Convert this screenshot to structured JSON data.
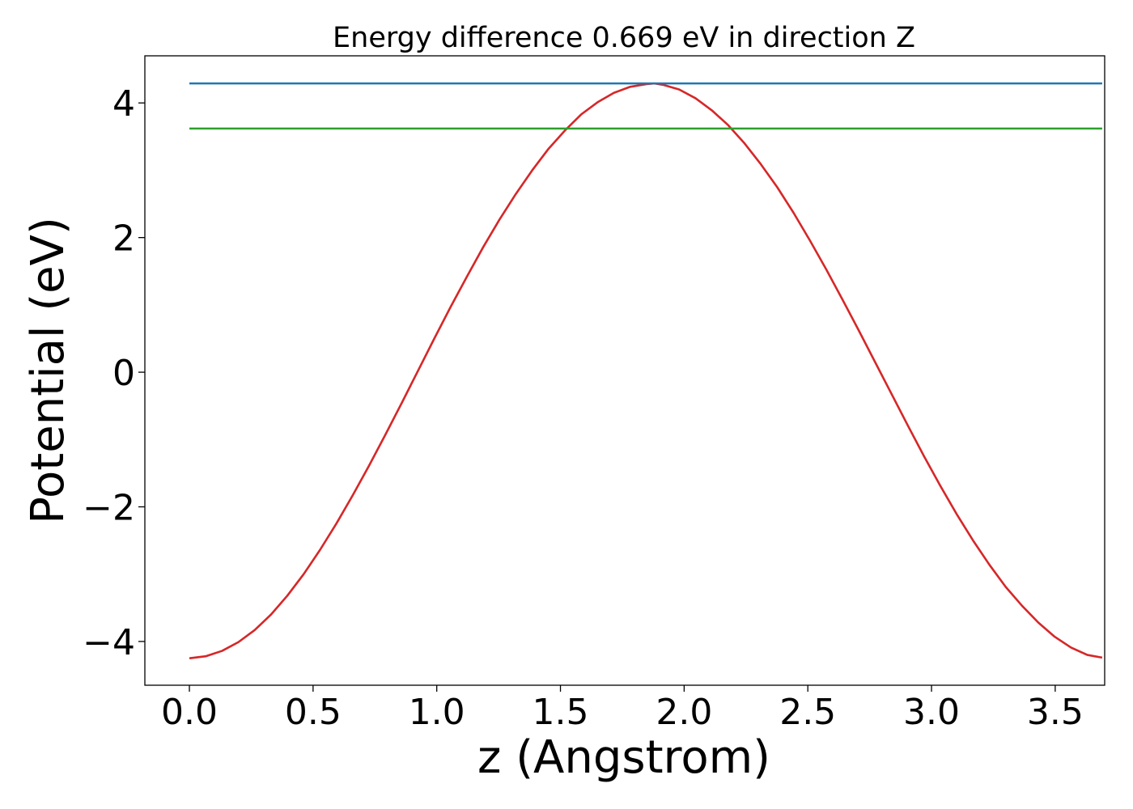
{
  "chart_data": {
    "type": "line",
    "title": "Energy difference 0.669 eV in direction Z",
    "xlabel": "z (Angstrom)",
    "ylabel": "Potential (eV)",
    "xlim": [
      -0.18,
      3.7
    ],
    "ylim": [
      -4.65,
      4.7
    ],
    "xticks": [
      0.0,
      0.5,
      1.0,
      1.5,
      2.0,
      2.5,
      3.0,
      3.5
    ],
    "xtick_labels": [
      "0.0",
      "0.5",
      "1.0",
      "1.5",
      "2.0",
      "2.5",
      "3.0",
      "3.5"
    ],
    "yticks": [
      -4,
      -2,
      0,
      2,
      4
    ],
    "ytick_labels": [
      "−4",
      "−2",
      "0",
      "2",
      "4"
    ],
    "grid": false,
    "legend": null,
    "series": [
      {
        "color": "#d62728",
        "x": [
          0.0,
          0.066,
          0.132,
          0.198,
          0.264,
          0.33,
          0.396,
          0.462,
          0.528,
          0.594,
          0.66,
          0.726,
          0.792,
          0.858,
          0.924,
          0.99,
          1.056,
          1.122,
          1.188,
          1.254,
          1.32,
          1.386,
          1.452,
          1.518,
          1.584,
          1.65,
          1.716,
          1.782,
          1.848,
          1.88,
          1.914,
          1.98,
          2.046,
          2.112,
          2.178,
          2.244,
          2.31,
          2.376,
          2.442,
          2.508,
          2.574,
          2.64,
          2.706,
          2.772,
          2.838,
          2.904,
          2.97,
          3.036,
          3.102,
          3.168,
          3.234,
          3.3,
          3.366,
          3.432,
          3.498,
          3.564,
          3.63,
          3.69
        ],
        "y": [
          -4.25,
          -4.22,
          -4.14,
          -4.01,
          -3.83,
          -3.6,
          -3.32,
          -3.0,
          -2.64,
          -2.25,
          -1.83,
          -1.39,
          -0.93,
          -0.46,
          0.02,
          0.5,
          0.97,
          1.42,
          1.86,
          2.27,
          2.65,
          3.0,
          3.32,
          3.59,
          3.83,
          4.01,
          4.15,
          4.24,
          4.28,
          4.29,
          4.27,
          4.2,
          4.07,
          3.89,
          3.67,
          3.4,
          3.09,
          2.75,
          2.37,
          1.96,
          1.53,
          1.08,
          0.62,
          0.15,
          -0.32,
          -0.79,
          -1.25,
          -1.69,
          -2.11,
          -2.5,
          -2.86,
          -3.19,
          -3.47,
          -3.72,
          -3.93,
          -4.09,
          -4.2,
          -4.24
        ]
      },
      {
        "color": "#1f77b4",
        "x": [
          0.0,
          3.69
        ],
        "y": [
          4.29,
          4.29
        ]
      },
      {
        "color": "#2ca02c",
        "x": [
          0.0,
          3.69
        ],
        "y": [
          3.62,
          3.62
        ]
      }
    ]
  }
}
